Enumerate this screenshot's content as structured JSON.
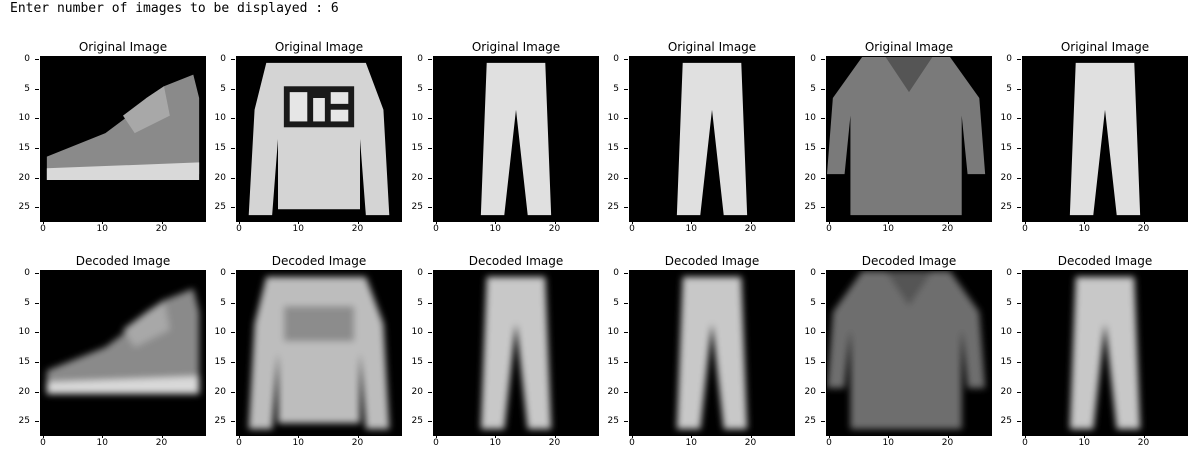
{
  "prompt": {
    "text": "Enter number of images to be displayed : 6"
  },
  "grid": {
    "rows": [
      {
        "title": "Original Image",
        "images": [
          {
            "item": "ankle-boot",
            "kind": "original"
          },
          {
            "item": "pullover",
            "kind": "original"
          },
          {
            "item": "trouser",
            "kind": "original"
          },
          {
            "item": "trouser",
            "kind": "original"
          },
          {
            "item": "shirt",
            "kind": "original"
          },
          {
            "item": "trouser",
            "kind": "original"
          }
        ]
      },
      {
        "title": "Decoded Image",
        "images": [
          {
            "item": "ankle-boot",
            "kind": "decoded"
          },
          {
            "item": "pullover",
            "kind": "decoded"
          },
          {
            "item": "trouser",
            "kind": "decoded"
          },
          {
            "item": "trouser",
            "kind": "decoded"
          },
          {
            "item": "shirt",
            "kind": "decoded"
          },
          {
            "item": "trouser",
            "kind": "decoded"
          }
        ]
      }
    ],
    "yticks": [
      "0",
      "5",
      "10",
      "15",
      "20",
      "25"
    ],
    "xticks": [
      "0",
      "10",
      "20"
    ],
    "tick_values_y": [
      0,
      5,
      10,
      15,
      20,
      25
    ],
    "tick_values_x": [
      0,
      10,
      20
    ],
    "axis_range": [
      -0.5,
      27.5
    ]
  },
  "colors": {
    "background": "#ffffff",
    "image_bg": "#000000"
  }
}
